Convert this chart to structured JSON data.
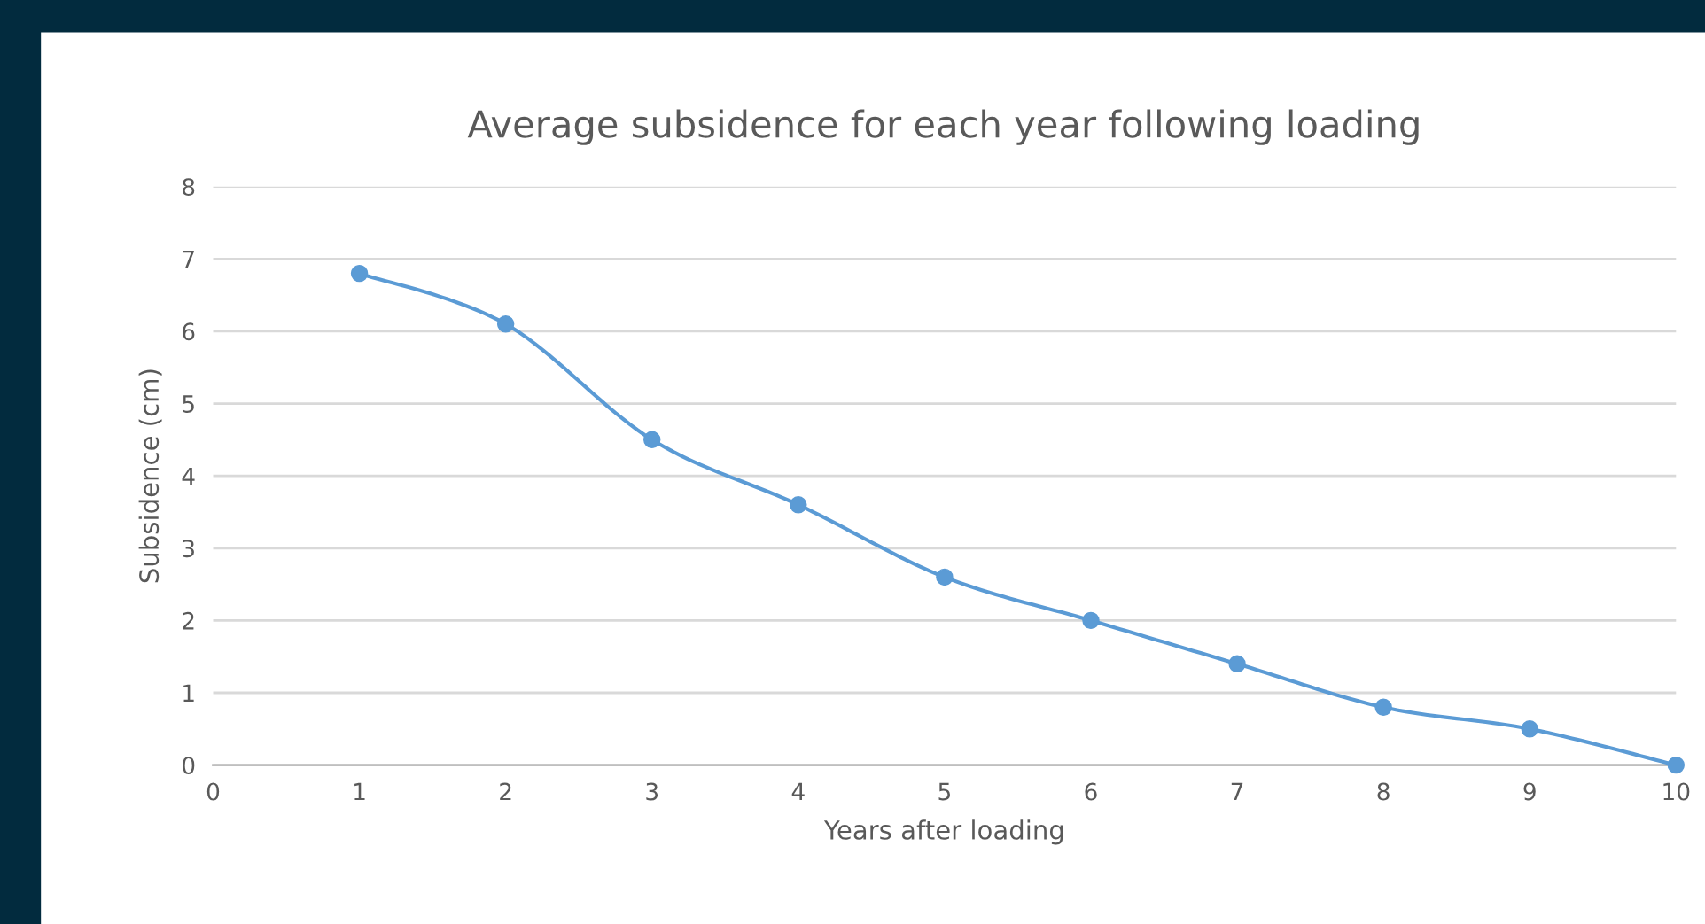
{
  "chart_data": {
    "type": "line",
    "title": "Average subsidence for each year following loading",
    "xlabel": "Years after loading",
    "ylabel": "Subsidence (cm)",
    "x": [
      1,
      2,
      3,
      4,
      5,
      6,
      7,
      8,
      9,
      10
    ],
    "series": [
      {
        "color": "#5b9bd5",
        "values": [
          6.8,
          6.1,
          4.5,
          3.6,
          2.6,
          2.0,
          1.4,
          0.8,
          0.5,
          0
        ]
      }
    ],
    "xlim": [
      0,
      10
    ],
    "xticks": [
      0,
      1,
      2,
      3,
      4,
      5,
      6,
      7,
      8,
      9,
      10
    ],
    "ylim": [
      0,
      8
    ],
    "yticks": [
      0,
      1,
      2,
      3,
      4,
      5,
      6,
      7,
      8
    ],
    "grid": "y",
    "legend": false,
    "marker": "circle",
    "line_style": "solid"
  }
}
